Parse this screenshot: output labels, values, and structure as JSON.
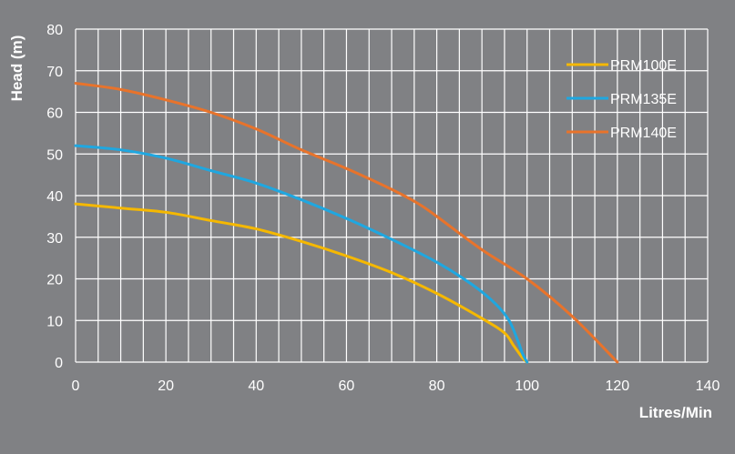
{
  "chart_data": {
    "type": "line",
    "title": "",
    "xlabel": "Litres/Min",
    "ylabel": "Head (m)",
    "xlim": [
      0,
      140
    ],
    "ylim": [
      0,
      80
    ],
    "x_ticks": [
      0,
      20,
      40,
      60,
      80,
      100,
      120,
      140
    ],
    "y_ticks": [
      0,
      10,
      20,
      30,
      40,
      50,
      60,
      70,
      80
    ],
    "grid": true,
    "legend_position": "top-right",
    "background_color": "#808184",
    "grid_color": "#ffffff",
    "text_color": "#ffffff",
    "series": [
      {
        "name": "PRM100E",
        "color": "#f5b800",
        "points": [
          [
            0,
            38
          ],
          [
            10,
            37
          ],
          [
            20,
            36
          ],
          [
            30,
            34
          ],
          [
            40,
            32
          ],
          [
            50,
            29
          ],
          [
            60,
            25.5
          ],
          [
            70,
            21.5
          ],
          [
            80,
            16.5
          ],
          [
            90,
            10.5
          ],
          [
            95,
            7
          ],
          [
            97,
            4
          ],
          [
            99,
            1
          ],
          [
            100,
            0
          ]
        ]
      },
      {
        "name": "PRM135E",
        "color": "#1fa7e0",
        "points": [
          [
            0,
            52
          ],
          [
            10,
            51
          ],
          [
            20,
            49
          ],
          [
            30,
            46
          ],
          [
            40,
            43
          ],
          [
            50,
            39
          ],
          [
            60,
            34.5
          ],
          [
            70,
            29.5
          ],
          [
            80,
            24
          ],
          [
            88,
            18.5
          ],
          [
            93,
            14
          ],
          [
            96,
            10
          ],
          [
            98,
            5
          ],
          [
            99,
            2
          ],
          [
            100,
            0
          ]
        ]
      },
      {
        "name": "PRM140E",
        "color": "#e8732b",
        "points": [
          [
            0,
            67
          ],
          [
            10,
            65.5
          ],
          [
            20,
            63
          ],
          [
            30,
            60
          ],
          [
            40,
            56
          ],
          [
            50,
            51
          ],
          [
            60,
            46.5
          ],
          [
            70,
            41.5
          ],
          [
            76,
            38
          ],
          [
            80,
            35
          ],
          [
            90,
            27
          ],
          [
            100,
            20
          ],
          [
            110,
            11
          ],
          [
            120,
            0
          ]
        ]
      }
    ]
  }
}
